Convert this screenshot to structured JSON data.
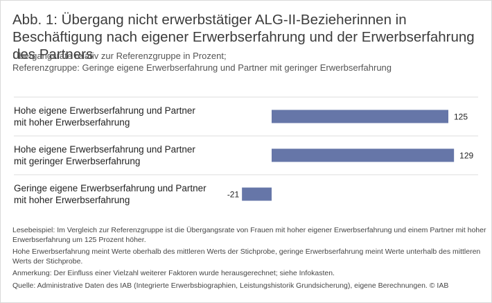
{
  "title": "Abb. 1: Übergang nicht erwerbstätiger ALG-II-Bezieherinnen in Beschäftigung nach eigener Erwerbserfahrung und der Erwerbserfahrung des Partners",
  "subtitle_line1": "Übergangsrate relativ zur Referenzgruppe in Prozent;",
  "subtitle_line2": "Referenzgruppe: Geringe eigene Erwerbserfahrung und Partner mit geringer Erwerbserfahrung",
  "chart_data": {
    "type": "bar",
    "orientation": "horizontal",
    "categories": [
      [
        "Hohe eigene Erwerbserfahrung und Partner",
        "mit hoher Erwerbserfahrung"
      ],
      [
        "Hohe eigene Erwerbserfahrung und Partner",
        "mit geringer Erwerbserfahrung"
      ],
      [
        "Geringe eigene Erwerbserfahrung und Partner",
        "mit hoher Erwerbserfahrung"
      ]
    ],
    "values": [
      125,
      129,
      -21
    ],
    "value_labels": [
      "125",
      "129",
      "-21"
    ],
    "xlim": [
      -21,
      129
    ],
    "grid": false,
    "bar_color": "#6676a8"
  },
  "notes": [
    "Lesebeispiel: Im Vergleich zur Referenzgruppe ist die Übergangsrate von Frauen mit hoher eigener Erwerbserfahrung und einem Partner mit hoher Erwerbserfahrung um 125 Prozent höher.",
    "Hohe Erwerbserfahrung meint Werte oberhalb des mittleren Werts der Stichprobe, geringe Erwerbserfahrung meint Werte unterhalb des mittleren Werts der Stichprobe.",
    "Anmerkung: Der Einfluss einer Vielzahl weiterer Faktoren wurde herausgerechnet; siehe Infokasten.",
    "Quelle: Administrative Daten des IAB (Integrierte Erwerbsbiographien, Leistungshistorik Grundsicherung), eigene Berechnungen. © IAB"
  ]
}
